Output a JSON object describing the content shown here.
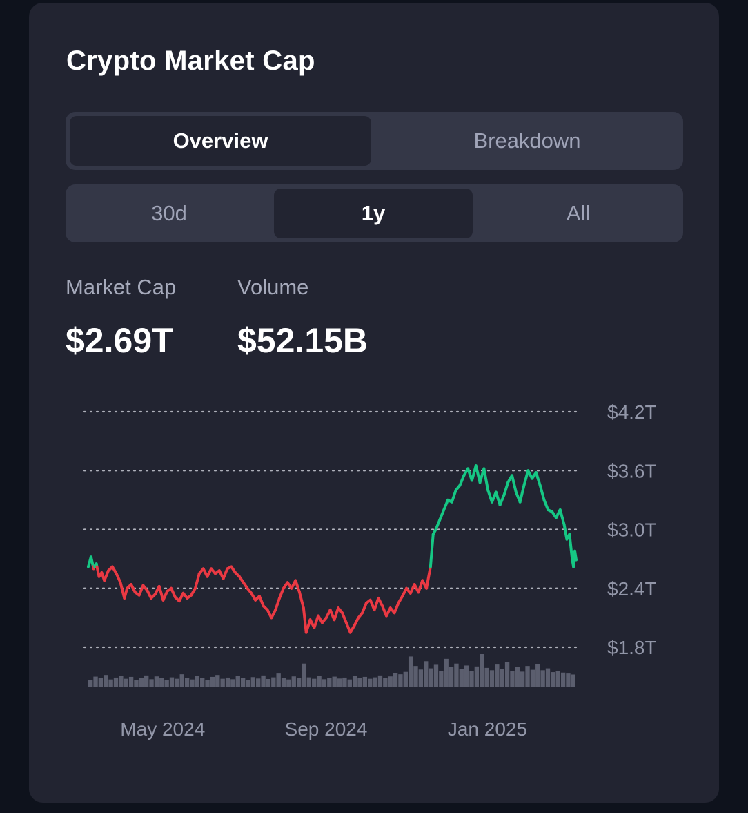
{
  "card": {
    "title": "Crypto Market Cap"
  },
  "view_tabs": [
    {
      "label": "Overview",
      "active": true
    },
    {
      "label": "Breakdown",
      "active": false
    }
  ],
  "range_tabs": [
    {
      "label": "30d",
      "active": false
    },
    {
      "label": "1y",
      "active": true
    },
    {
      "label": "All",
      "active": false
    }
  ],
  "stats": {
    "market_cap_label": "Market Cap",
    "market_cap_value": "$2.69T",
    "volume_label": "Volume",
    "volume_value": "$52.15B"
  },
  "colors": {
    "up": "#16c784",
    "down": "#ea3943",
    "volume_bars": "#5b5e6e",
    "grid": "#c8cad4"
  },
  "chart_data": {
    "type": "line",
    "y_ticks": [
      "$4.2T",
      "$3.6T",
      "$3.0T",
      "$2.4T",
      "$1.8T"
    ],
    "y_tick_values": [
      4.2,
      3.6,
      3.0,
      2.4,
      1.8
    ],
    "x_ticks": [
      "May 2024",
      "Sep 2024",
      "Jan 2025"
    ],
    "x_tick_dates": [
      "2024-05-01",
      "2024-09-01",
      "2025-01-01"
    ],
    "x_range": [
      "2024-04-04",
      "2025-04-04"
    ],
    "ylim": [
      1.8,
      4.2
    ],
    "baseline": 2.62,
    "grid": "dotted-horizontal",
    "series": [
      {
        "points": [
          [
            "2024-04-04",
            2.62
          ],
          [
            "2024-04-06",
            2.72
          ],
          [
            "2024-04-08",
            2.6
          ],
          [
            "2024-04-10",
            2.65
          ],
          [
            "2024-04-12",
            2.52
          ],
          [
            "2024-04-14",
            2.56
          ],
          [
            "2024-04-16",
            2.48
          ],
          [
            "2024-04-19",
            2.58
          ],
          [
            "2024-04-22",
            2.62
          ],
          [
            "2024-04-25",
            2.55
          ],
          [
            "2024-04-28",
            2.46
          ],
          [
            "2024-05-01",
            2.3
          ],
          [
            "2024-05-03",
            2.4
          ],
          [
            "2024-05-06",
            2.44
          ],
          [
            "2024-05-09",
            2.36
          ],
          [
            "2024-05-12",
            2.33
          ],
          [
            "2024-05-15",
            2.43
          ],
          [
            "2024-05-18",
            2.38
          ],
          [
            "2024-05-21",
            2.3
          ],
          [
            "2024-05-24",
            2.34
          ],
          [
            "2024-05-27",
            2.42
          ],
          [
            "2024-05-30",
            2.28
          ],
          [
            "2024-06-02",
            2.37
          ],
          [
            "2024-06-05",
            2.4
          ],
          [
            "2024-06-08",
            2.31
          ],
          [
            "2024-06-11",
            2.27
          ],
          [
            "2024-06-14",
            2.35
          ],
          [
            "2024-06-17",
            2.3
          ],
          [
            "2024-06-20",
            2.33
          ],
          [
            "2024-06-23",
            2.4
          ],
          [
            "2024-06-26",
            2.55
          ],
          [
            "2024-06-29",
            2.6
          ],
          [
            "2024-07-02",
            2.52
          ],
          [
            "2024-07-05",
            2.6
          ],
          [
            "2024-07-08",
            2.55
          ],
          [
            "2024-07-11",
            2.58
          ],
          [
            "2024-07-14",
            2.5
          ],
          [
            "2024-07-17",
            2.6
          ],
          [
            "2024-07-20",
            2.62
          ],
          [
            "2024-07-23",
            2.56
          ],
          [
            "2024-07-26",
            2.52
          ],
          [
            "2024-07-29",
            2.46
          ],
          [
            "2024-08-01",
            2.4
          ],
          [
            "2024-08-04",
            2.35
          ],
          [
            "2024-08-07",
            2.28
          ],
          [
            "2024-08-10",
            2.32
          ],
          [
            "2024-08-13",
            2.22
          ],
          [
            "2024-08-16",
            2.18
          ],
          [
            "2024-08-19",
            2.1
          ],
          [
            "2024-08-22",
            2.18
          ],
          [
            "2024-08-25",
            2.3
          ],
          [
            "2024-08-28",
            2.4
          ],
          [
            "2024-08-31",
            2.46
          ],
          [
            "2024-09-03",
            2.4
          ],
          [
            "2024-09-06",
            2.48
          ],
          [
            "2024-09-09",
            2.36
          ],
          [
            "2024-09-12",
            2.2
          ],
          [
            "2024-09-14",
            1.95
          ],
          [
            "2024-09-17",
            2.08
          ],
          [
            "2024-09-20",
            2.0
          ],
          [
            "2024-09-23",
            2.12
          ],
          [
            "2024-09-26",
            2.05
          ],
          [
            "2024-09-29",
            2.1
          ],
          [
            "2024-10-02",
            2.18
          ],
          [
            "2024-10-05",
            2.08
          ],
          [
            "2024-10-08",
            2.2
          ],
          [
            "2024-10-11",
            2.15
          ],
          [
            "2024-10-14",
            2.05
          ],
          [
            "2024-10-17",
            1.95
          ],
          [
            "2024-10-20",
            2.02
          ],
          [
            "2024-10-23",
            2.1
          ],
          [
            "2024-10-26",
            2.15
          ],
          [
            "2024-10-29",
            2.25
          ],
          [
            "2024-11-01",
            2.28
          ],
          [
            "2024-11-04",
            2.18
          ],
          [
            "2024-11-07",
            2.3
          ],
          [
            "2024-11-10",
            2.22
          ],
          [
            "2024-11-13",
            2.12
          ],
          [
            "2024-11-16",
            2.2
          ],
          [
            "2024-11-19",
            2.15
          ],
          [
            "2024-11-22",
            2.25
          ],
          [
            "2024-11-25",
            2.32
          ],
          [
            "2024-11-28",
            2.4
          ],
          [
            "2024-12-01",
            2.35
          ],
          [
            "2024-12-04",
            2.44
          ],
          [
            "2024-12-07",
            2.36
          ],
          [
            "2024-12-10",
            2.48
          ],
          [
            "2024-12-13",
            2.4
          ],
          [
            "2024-12-16",
            2.62
          ],
          [
            "2024-12-18",
            2.95
          ],
          [
            "2024-12-20",
            3.0
          ],
          [
            "2024-12-23",
            3.1
          ],
          [
            "2024-12-26",
            3.2
          ],
          [
            "2024-12-29",
            3.3
          ],
          [
            "2025-01-01",
            3.28
          ],
          [
            "2025-01-04",
            3.4
          ],
          [
            "2025-01-07",
            3.45
          ],
          [
            "2025-01-10",
            3.55
          ],
          [
            "2025-01-13",
            3.62
          ],
          [
            "2025-01-16",
            3.5
          ],
          [
            "2025-01-19",
            3.65
          ],
          [
            "2025-01-22",
            3.48
          ],
          [
            "2025-01-25",
            3.62
          ],
          [
            "2025-01-28",
            3.4
          ],
          [
            "2025-01-31",
            3.28
          ],
          [
            "2025-02-03",
            3.38
          ],
          [
            "2025-02-06",
            3.25
          ],
          [
            "2025-02-09",
            3.35
          ],
          [
            "2025-02-12",
            3.48
          ],
          [
            "2025-02-15",
            3.55
          ],
          [
            "2025-02-18",
            3.38
          ],
          [
            "2025-02-21",
            3.28
          ],
          [
            "2025-02-24",
            3.45
          ],
          [
            "2025-02-27",
            3.6
          ],
          [
            "2025-03-02",
            3.52
          ],
          [
            "2025-03-05",
            3.58
          ],
          [
            "2025-03-08",
            3.45
          ],
          [
            "2025-03-11",
            3.3
          ],
          [
            "2025-03-14",
            3.2
          ],
          [
            "2025-03-17",
            3.18
          ],
          [
            "2025-03-20",
            3.12
          ],
          [
            "2025-03-23",
            3.2
          ],
          [
            "2025-03-26",
            3.05
          ],
          [
            "2025-03-28",
            2.9
          ],
          [
            "2025-03-30",
            2.95
          ],
          [
            "2025-04-01",
            2.7
          ],
          [
            "2025-04-02",
            2.62
          ],
          [
            "2025-04-03",
            2.78
          ],
          [
            "2025-04-04",
            2.69
          ]
        ]
      }
    ],
    "volume": [
      0.3,
      0.45,
      0.38,
      0.52,
      0.33,
      0.41,
      0.48,
      0.36,
      0.44,
      0.3,
      0.38,
      0.5,
      0.34,
      0.46,
      0.4,
      0.32,
      0.42,
      0.36,
      0.55,
      0.4,
      0.33,
      0.47,
      0.38,
      0.3,
      0.44,
      0.52,
      0.36,
      0.41,
      0.34,
      0.48,
      0.39,
      0.31,
      0.43,
      0.37,
      0.5,
      0.35,
      0.42,
      0.58,
      0.4,
      0.33,
      0.46,
      0.38,
      1.0,
      0.42,
      0.36,
      0.49,
      0.34,
      0.4,
      0.45,
      0.37,
      0.41,
      0.33,
      0.48,
      0.39,
      0.44,
      0.36,
      0.42,
      0.5,
      0.38,
      0.46,
      0.6,
      0.55,
      0.65,
      1.3,
      0.9,
      0.75,
      1.1,
      0.8,
      0.95,
      0.7,
      1.2,
      0.85,
      1.0,
      0.78,
      0.92,
      0.68,
      0.88,
      1.4,
      0.82,
      0.72,
      0.96,
      0.76,
      1.05,
      0.7,
      0.86,
      0.66,
      0.9,
      0.74,
      0.98,
      0.72,
      0.8,
      0.64,
      0.7,
      0.62,
      0.58,
      0.54
    ]
  }
}
